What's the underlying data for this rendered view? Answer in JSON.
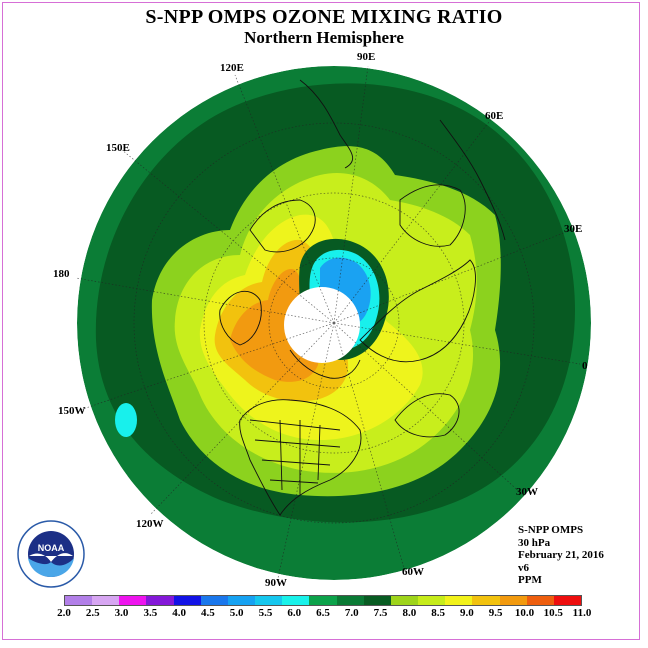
{
  "title": "S-NPP OMPS OZONE MIXING RATIO",
  "subtitle": "Northern Hemisphere",
  "longitude_labels": [
    "90E",
    "60E",
    "30E",
    "0",
    "30W",
    "60W",
    "90W",
    "120W",
    "150W",
    "180",
    "150E",
    "120E"
  ],
  "info": {
    "instrument": "S-NPP OMPS",
    "level": "30 hPa",
    "date": "February 21, 2016",
    "version": "v6",
    "units": "PPM"
  },
  "colorbar": {
    "labels": [
      "2.0",
      "2.5",
      "3.0",
      "3.5",
      "4.0",
      "4.5",
      "5.0",
      "5.5",
      "6.0",
      "6.5",
      "7.0",
      "7.5",
      "8.0",
      "8.5",
      "9.0",
      "9.5",
      "10.0",
      "10.5",
      "11.0"
    ],
    "colors": [
      "#b27fe8",
      "#d7a6f2",
      "#ee14ee",
      "#8418d8",
      "#1212e6",
      "#1a77ec",
      "#16a2f2",
      "#16c7ee",
      "#19f2ea",
      "#0ca24a",
      "#0a7a34",
      "#085c22",
      "#9ed41a",
      "#c6ec1a",
      "#f2f21a",
      "#f2c20e",
      "#f29a0e",
      "#ee5e0e",
      "#ee0e0e"
    ]
  },
  "logo": {
    "text": "NOAA"
  },
  "colors": {
    "ocean_outer": "#0b7d36",
    "ring_dark": "#075a22",
    "green_mid": "#8cd21e",
    "yellow_green": "#c8ee1c",
    "yellow": "#eef41c",
    "orange_light": "#f2c20e",
    "orange": "#f29a10",
    "cyan": "#18f0ec",
    "blue": "#1aa2f2"
  }
}
